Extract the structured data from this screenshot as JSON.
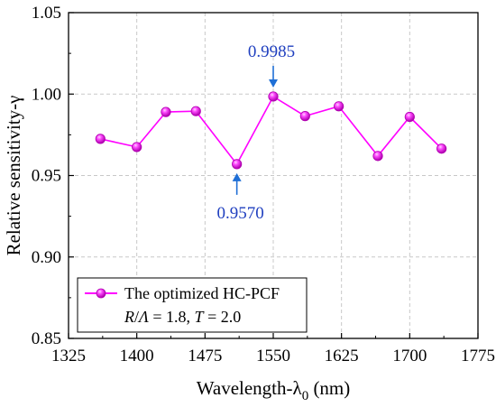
{
  "chart_data": {
    "type": "line",
    "xlabel": {
      "main": "Wavelength-λ",
      "sub": "0",
      "unit": " (nm)"
    },
    "ylabel": "Relative sensitivity-γ",
    "xlim": [
      1325,
      1775
    ],
    "ylim": [
      0.85,
      1.05
    ],
    "xticks": [
      "1325",
      "1400",
      "1475",
      "1550",
      "1625",
      "1700",
      "1775"
    ],
    "xtick_values": [
      1325,
      1400,
      1475,
      1550,
      1625,
      1700,
      1775
    ],
    "yticks": [
      "0.85",
      "0.90",
      "0.95",
      "1.00",
      "1.05"
    ],
    "ytick_values": [
      0.85,
      0.9,
      0.95,
      1.0,
      1.05
    ],
    "grid": true,
    "series": [
      {
        "name": "The optimized HC-PCF",
        "color": "#ff00ff",
        "marker": "sphere",
        "x": [
          1360,
          1400,
          1432,
          1465,
          1510,
          1550,
          1585,
          1622,
          1665,
          1700,
          1735
        ],
        "y": [
          0.9725,
          0.9675,
          0.989,
          0.9895,
          0.957,
          0.9985,
          0.9865,
          0.9925,
          0.962,
          0.986,
          0.9665
        ]
      }
    ],
    "legend": {
      "position": "bottom-left",
      "label": "The optimized HC-PCF",
      "params": {
        "r": "R",
        "lam": "Λ",
        "rv": " = 1.8, ",
        "t": "T",
        "tv": " = 2.0"
      }
    },
    "annotations": [
      {
        "text": "0.9985",
        "x": 1550,
        "y": 0.9985,
        "direction": "down"
      },
      {
        "text": "0.9570",
        "x": 1510,
        "y": 0.957,
        "direction": "up"
      }
    ]
  }
}
